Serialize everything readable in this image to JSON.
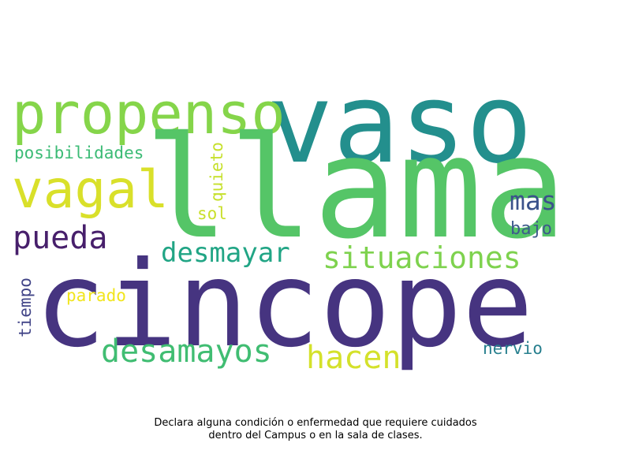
{
  "words": {
    "cincope": {
      "text": "cincope",
      "color": "#463480"
    },
    "llama": {
      "text": "llama",
      "color": "#55c567"
    },
    "vaso": {
      "text": "vaso",
      "color": "#238f8d"
    },
    "propenso": {
      "text": "propenso",
      "color": "#85d54a"
    },
    "vagal": {
      "text": "vagal",
      "color": "#d9e02a"
    },
    "pueda": {
      "text": "pueda",
      "color": "#471f6b"
    },
    "desmayar": {
      "text": "desmayar",
      "color": "#21a585"
    },
    "situaciones": {
      "text": "situaciones",
      "color": "#7ed24e"
    },
    "desamayos": {
      "text": "desamayos",
      "color": "#40bd72"
    },
    "hacen": {
      "text": "hacen",
      "color": "#d4e12b"
    },
    "mas": {
      "text": "mas",
      "color": "#3b528b"
    },
    "bajo": {
      "text": "bajo",
      "color": "#3e5a8c"
    },
    "nervio": {
      "text": "nervio",
      "color": "#277f8e"
    },
    "posibilidades": {
      "text": "posibilidades",
      "color": "#3bbb75"
    },
    "parado": {
      "text": "parado",
      "color": "#f1e51d"
    },
    "sol": {
      "text": "sol",
      "color": "#c9df2a"
    },
    "quieto": {
      "text": "quieto",
      "color": "#c6e02c"
    },
    "tiempo": {
      "text": "tiempo",
      "color": "#414487"
    }
  },
  "caption": {
    "line1": "Declara alguna condición o enfermedad que requiere cuidados",
    "line2": "dentro del Campus o en la sala de clases."
  }
}
